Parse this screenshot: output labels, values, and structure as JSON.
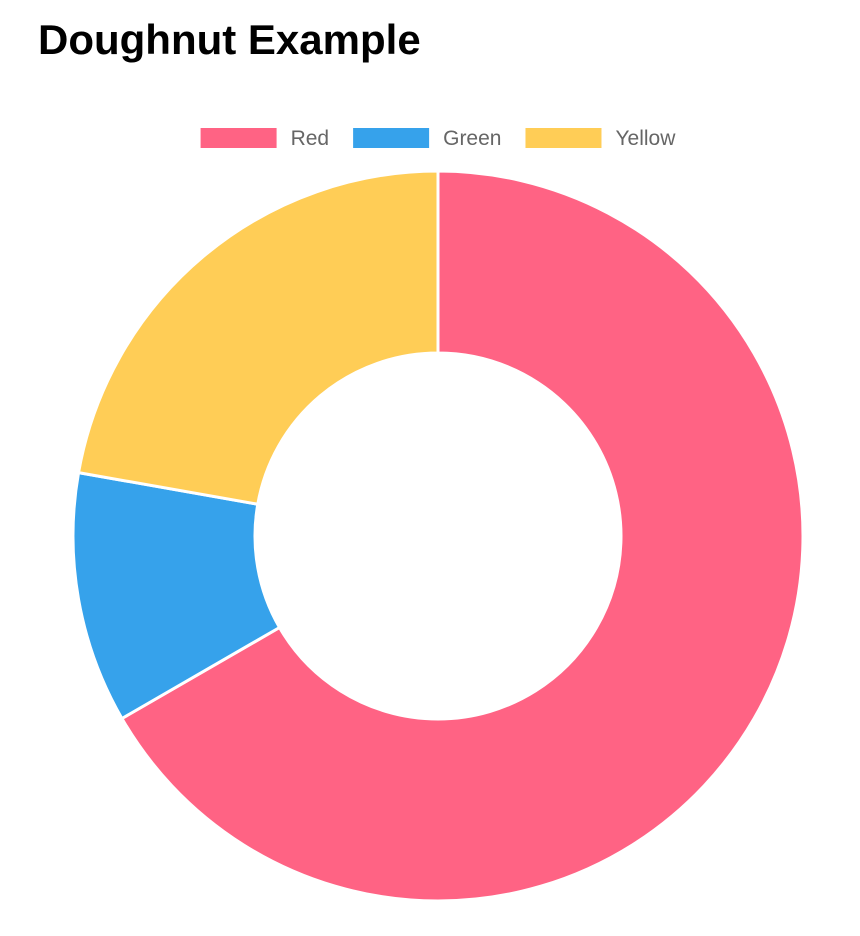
{
  "page": {
    "title": "Doughnut Example"
  },
  "chart_data": {
    "type": "doughnut",
    "title": "",
    "categories": [
      "Red",
      "Green",
      "Yellow"
    ],
    "values": [
      300,
      50,
      100
    ],
    "colors": [
      "#ff6384",
      "#36a2eb",
      "#ffcd56"
    ],
    "legend_position": "top",
    "series": [
      {
        "values": [
          300,
          50,
          100
        ]
      }
    ]
  }
}
